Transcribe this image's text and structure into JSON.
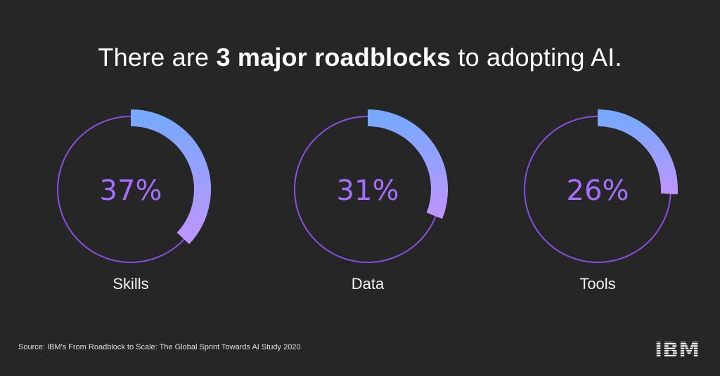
{
  "headline": {
    "prefix": "There are ",
    "emphasis": "3 major roadblocks",
    "suffix": " to adopting AI."
  },
  "source": "Source: IBM's From Roadblock to Scale: The Global Sprint Towards AI Study 2020",
  "logo": {
    "text": "IBM",
    "icon": "ibm-logo"
  },
  "colors": {
    "background": "#262626",
    "track": "#8a4fe0",
    "arc_start": "#78a9ff",
    "arc_end": "#be95ff",
    "value": "#a56eff"
  },
  "chart_data": {
    "type": "pie",
    "categories": [
      "Skills",
      "Data",
      "Tools"
    ],
    "values": [
      37,
      31,
      26
    ],
    "value_labels": [
      "37%",
      "31%",
      "26%"
    ],
    "max": 100
  }
}
